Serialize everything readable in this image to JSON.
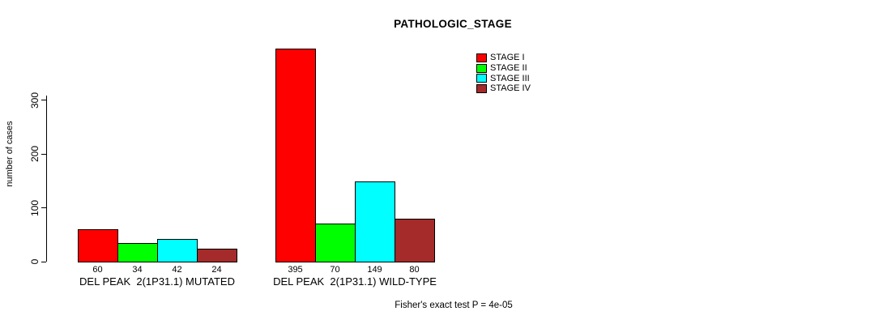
{
  "title": "PATHOLOGIC_STAGE",
  "footer_annotation": "Fisher's exact test P = 4e-05",
  "chart_data": {
    "type": "bar",
    "title": "PATHOLOGIC_STAGE",
    "xlabel": "",
    "ylabel": "number of cases",
    "ylim": [
      0,
      395
    ],
    "yticks": [
      0,
      100,
      200,
      300
    ],
    "grid": false,
    "bar_borders": "black",
    "background": "#ffffff",
    "legend_position": "top-right",
    "categories": [
      "DEL PEAK  2(1P31.1) MUTATED",
      "DEL PEAK  2(1P31.1) WILD-TYPE"
    ],
    "series": [
      {
        "name": "STAGE I",
        "color": "#ff0000",
        "values": [
          60,
          395
        ]
      },
      {
        "name": "STAGE II",
        "color": "#00ff00",
        "values": [
          34,
          70
        ]
      },
      {
        "name": "STAGE III",
        "color": "#00ffff",
        "values": [
          42,
          149
        ]
      },
      {
        "name": "STAGE IV",
        "color": "#a52a2a",
        "values": [
          24,
          80
        ]
      }
    ],
    "value_labels": {
      "DEL PEAK  2(1P31.1) MUTATED": [
        60,
        34,
        42,
        24
      ],
      "DEL PEAK  2(1P31.1) WILD-TYPE": [
        395,
        70,
        149,
        80
      ]
    },
    "annotation": "Fisher's exact test P = 4e-05"
  }
}
